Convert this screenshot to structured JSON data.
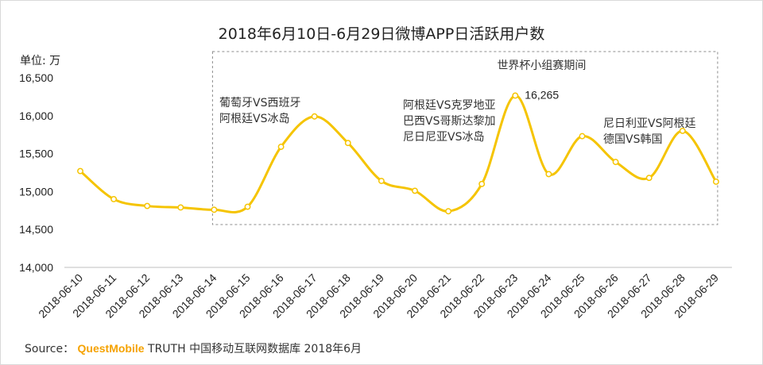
{
  "chart_data": {
    "type": "line",
    "title": "2018年6月10日-6月29日微博APP日活跃用户数",
    "ylabel": "单位: 万",
    "ylim": [
      14000,
      16500
    ],
    "yticks": [
      "14,000",
      "14,500",
      "15,000",
      "15,500",
      "16,000",
      "16,500"
    ],
    "ytick_values": [
      14000,
      14500,
      15000,
      15500,
      16000,
      16500
    ],
    "categories": [
      "2018-06-10",
      "2018-06-11",
      "2018-06-12",
      "2018-06-13",
      "2018-06-14",
      "2018-06-15",
      "2018-06-16",
      "2018-06-17",
      "2018-06-18",
      "2018-06-19",
      "2018-06-20",
      "2018-06-21",
      "2018-06-22",
      "2018-06-23",
      "2018-06-24",
      "2018-06-25",
      "2018-06-26",
      "2018-06-27",
      "2018-06-28",
      "2018-06-29"
    ],
    "values": [
      15270,
      14900,
      14810,
      14790,
      14760,
      14800,
      15590,
      15990,
      15640,
      15140,
      15010,
      14740,
      15100,
      16265,
      15230,
      15730,
      15390,
      15180,
      15800,
      15130
    ],
    "series_color": "#f5c400",
    "data_labels": [
      {
        "category": "2018-06-23",
        "text": "16,265"
      }
    ],
    "highlight_region": {
      "label": "世界杯小组赛期间",
      "from": "2018-06-14",
      "to": "2018-06-29",
      "style": "dashed"
    },
    "annotations": [
      {
        "lines": [
          "葡萄牙VS西班牙",
          "阿根廷VS冰岛"
        ],
        "near": "2018-06-14"
      },
      {
        "lines": [
          "阿根廷VS克罗地亚",
          "巴西VS哥斯达黎加",
          "尼日尼亚VS冰岛"
        ],
        "near": "2018-06-20"
      },
      {
        "lines": [
          "尼日利亚VS阿根廷",
          "德国VS韩国"
        ],
        "near": "2018-06-26"
      }
    ],
    "grid": false
  },
  "source": {
    "prefix": "Source：",
    "brand": "QuestMobile",
    "text": "TRUTH 中国移动互联网数据库 2018年6月"
  }
}
